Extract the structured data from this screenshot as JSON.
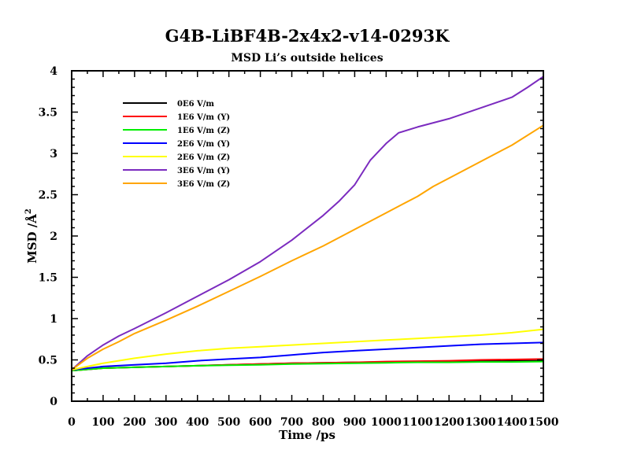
{
  "chart_data": {
    "type": "line",
    "title": "G4B-LiBF4B-2x4x2-v14-0293K",
    "subtitle": "MSD Li’s outside helices",
    "xlabel": "Time /ps",
    "ylabel": "MSD /Å",
    "ylabel_superscript": "2",
    "xlim": [
      0,
      1500
    ],
    "ylim": [
      0,
      4
    ],
    "xticks": [
      "0",
      "100",
      "200",
      "300",
      "400",
      "500",
      "600",
      "700",
      "800",
      "900",
      "1000",
      "1100",
      "1200",
      "1300",
      "1400",
      "1500"
    ],
    "yticks": [
      "0",
      "0.5",
      "1",
      "1.5",
      "2",
      "2.5",
      "3",
      "3.5",
      "4"
    ],
    "grid": false,
    "legend_position": "top-left",
    "series": [
      {
        "name": "0E6 V/m",
        "color": "#000000",
        "x": [
          0,
          100,
          200,
          300,
          400,
          500,
          600,
          700,
          800,
          900,
          1000,
          1100,
          1200,
          1300,
          1400,
          1500
        ],
        "y": [
          0.37,
          0.4,
          0.41,
          0.42,
          0.43,
          0.44,
          0.45,
          0.46,
          0.465,
          0.47,
          0.475,
          0.48,
          0.485,
          0.49,
          0.49,
          0.49
        ]
      },
      {
        "name": "1E6 V/m (Y)",
        "color": "#ff0000",
        "x": [
          0,
          100,
          200,
          300,
          400,
          500,
          600,
          700,
          800,
          900,
          1000,
          1100,
          1200,
          1300,
          1400,
          1500
        ],
        "y": [
          0.37,
          0.4,
          0.41,
          0.42,
          0.43,
          0.44,
          0.45,
          0.46,
          0.465,
          0.47,
          0.48,
          0.485,
          0.49,
          0.5,
          0.505,
          0.51
        ]
      },
      {
        "name": "1E6 V/m (Z)",
        "color": "#00ee00",
        "x": [
          0,
          100,
          200,
          300,
          400,
          500,
          600,
          700,
          800,
          900,
          1000,
          1100,
          1200,
          1300,
          1400,
          1500
        ],
        "y": [
          0.37,
          0.4,
          0.41,
          0.42,
          0.43,
          0.435,
          0.44,
          0.45,
          0.455,
          0.46,
          0.465,
          0.47,
          0.47,
          0.475,
          0.475,
          0.48
        ]
      },
      {
        "name": "2E6 V/m (Y)",
        "color": "#0000ff",
        "x": [
          0,
          100,
          200,
          300,
          400,
          500,
          600,
          700,
          800,
          900,
          1000,
          1100,
          1200,
          1300,
          1400,
          1500
        ],
        "y": [
          0.38,
          0.42,
          0.44,
          0.46,
          0.49,
          0.51,
          0.53,
          0.56,
          0.59,
          0.61,
          0.63,
          0.65,
          0.67,
          0.69,
          0.7,
          0.71
        ]
      },
      {
        "name": "2E6 V/m (Z)",
        "color": "#ffff00",
        "x": [
          0,
          100,
          200,
          300,
          400,
          500,
          600,
          700,
          800,
          900,
          1000,
          1100,
          1200,
          1300,
          1400,
          1500
        ],
        "y": [
          0.38,
          0.46,
          0.52,
          0.57,
          0.61,
          0.64,
          0.66,
          0.68,
          0.7,
          0.72,
          0.74,
          0.76,
          0.78,
          0.8,
          0.83,
          0.87
        ]
      },
      {
        "name": "3E6 V/m (Y)",
        "color": "#7b2bbf",
        "x": [
          0,
          50,
          100,
          150,
          200,
          300,
          400,
          500,
          600,
          700,
          800,
          850,
          900,
          950,
          1000,
          1040,
          1100,
          1200,
          1300,
          1400,
          1450,
          1500
        ],
        "y": [
          0.38,
          0.55,
          0.68,
          0.79,
          0.88,
          1.07,
          1.27,
          1.47,
          1.69,
          1.95,
          2.25,
          2.42,
          2.62,
          2.92,
          3.12,
          3.25,
          3.32,
          3.42,
          3.55,
          3.68,
          3.8,
          3.93
        ]
      },
      {
        "name": "3E6 V/m (Z)",
        "color": "#ffa500",
        "x": [
          0,
          50,
          100,
          150,
          200,
          300,
          400,
          500,
          600,
          700,
          800,
          900,
          1000,
          1100,
          1150,
          1200,
          1300,
          1400,
          1500
        ],
        "y": [
          0.38,
          0.52,
          0.63,
          0.72,
          0.82,
          0.98,
          1.15,
          1.33,
          1.51,
          1.7,
          1.88,
          2.08,
          2.28,
          2.48,
          2.6,
          2.7,
          2.9,
          3.1,
          3.34
        ]
      }
    ]
  }
}
